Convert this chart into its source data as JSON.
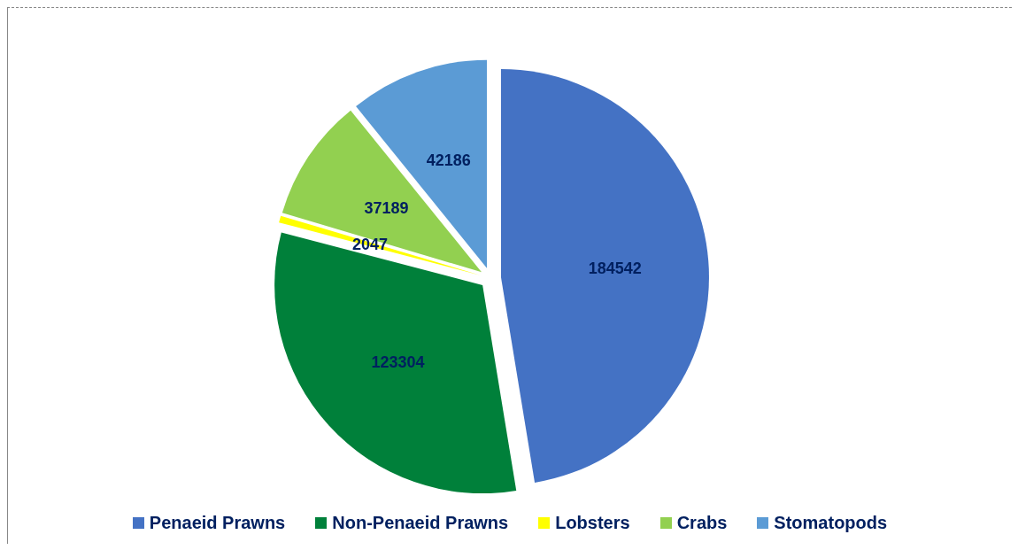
{
  "chart_data": {
    "type": "pie",
    "categories": [
      "Penaeid Prawns",
      "Non-Penaeid Prawns",
      "Lobsters",
      "Crabs",
      "Stomatopods"
    ],
    "values": [
      184542,
      123304,
      2047,
      37189,
      42186
    ],
    "colors": [
      "#4472c4",
      "#00803a",
      "#ffff00",
      "#92d050",
      "#5b9bd5"
    ],
    "data_labels": true,
    "legend": "bottom"
  }
}
